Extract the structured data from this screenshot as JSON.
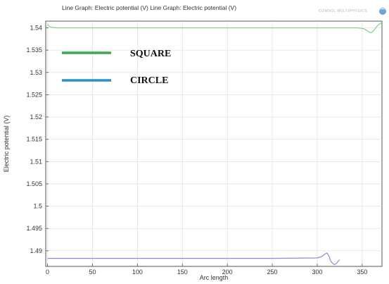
{
  "chart_data": {
    "type": "line",
    "title": "Line Graph: Electric potential (V)  Line Graph: Electric potential (V)",
    "xlabel": "Arc length",
    "ylabel": "Electric potential (V)",
    "xlim": [
      -2,
      372
    ],
    "ylim": [
      1.4865,
      1.5415
    ],
    "x_ticks": [
      0,
      50,
      100,
      150,
      200,
      250,
      300,
      350
    ],
    "x_tick_labels": [
      "0",
      "50",
      "100",
      "150",
      "200",
      "250",
      "300",
      "350"
    ],
    "y_ticks": [
      1.49,
      1.495,
      1.5,
      1.505,
      1.51,
      1.515,
      1.52,
      1.525,
      1.53,
      1.535,
      1.54
    ],
    "y_tick_labels": [
      "1.49",
      "1.495",
      "1.5",
      "1.505",
      "1.51",
      "1.515",
      "1.52",
      "1.525",
      "1.53",
      "1.535",
      "1.54"
    ],
    "grid": true,
    "legend_position": "top-left",
    "series": [
      {
        "name": "SQUARE",
        "color": "#7fcf91",
        "legend_color": "#3aaa4f",
        "x": [
          0,
          2,
          5,
          10,
          20,
          50,
          100,
          200,
          300,
          345,
          352,
          356,
          358,
          360,
          362,
          365,
          368,
          372
        ],
        "y": [
          1.5408,
          1.5403,
          1.5401,
          1.54,
          1.54,
          1.54,
          1.54,
          1.54,
          1.54,
          1.54,
          1.5398,
          1.5393,
          1.539,
          1.5389,
          1.5392,
          1.54,
          1.5407,
          1.5412
        ]
      },
      {
        "name": "CIRCLE",
        "color": "#8c8cd2",
        "legend_color": "#2a92c4",
        "x": [
          0,
          50,
          100,
          150,
          200,
          250,
          300,
          305,
          308,
          311,
          313,
          315,
          317,
          319,
          321,
          323,
          325
        ],
        "y": [
          1.4883,
          1.4883,
          1.4883,
          1.4883,
          1.4883,
          1.4883,
          1.4884,
          1.4887,
          1.4892,
          1.4895,
          1.4888,
          1.4877,
          1.4872,
          1.4869,
          1.4871,
          1.4876,
          1.488
        ]
      }
    ]
  },
  "logo": {
    "text": "COMSOL MULTIPHYSICS",
    "icon": "comsol-logo-icon"
  }
}
